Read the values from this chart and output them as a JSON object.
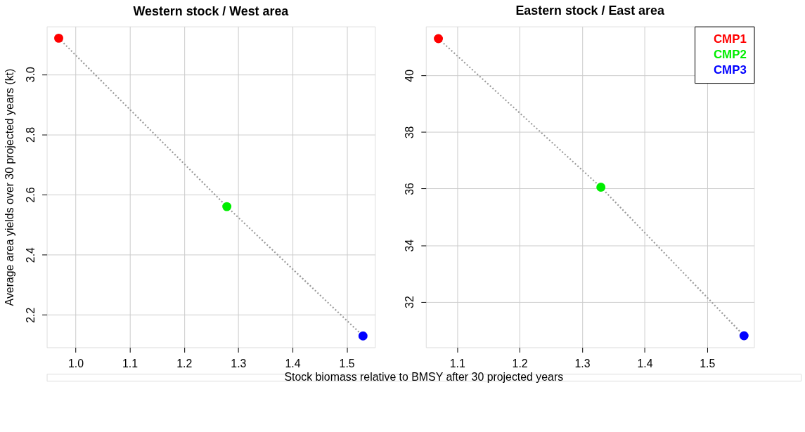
{
  "chart_data": [
    {
      "type": "scatter",
      "title": "Western stock / West area",
      "xlabel": "Stock biomass relative to BMSY after 30 projected years",
      "ylabel": "Average area yields over 30 projected years (kt)",
      "xlim": [
        0.947,
        1.552
      ],
      "ylim": [
        2.092,
        3.159
      ],
      "xticks": [
        {
          "value": 1,
          "label": "1.0"
        },
        1.1,
        1.2,
        1.3,
        1.4,
        1.5
      ],
      "yticks": [
        2.2,
        2.4,
        2.6,
        2.8,
        {
          "value": 3,
          "label": "3.0"
        }
      ],
      "grid": true,
      "series": [
        {
          "type": "line",
          "x": [
            0.969,
            1.279,
            1.53
          ],
          "values": [
            3.12,
            2.56,
            2.13
          ],
          "color": "#999999",
          "line_style": "dotted"
        },
        {
          "x": [
            0.969
          ],
          "values": [
            3.12
          ],
          "color": "#ff0000",
          "marker": "circle"
        },
        {
          "x": [
            1.279
          ],
          "values": [
            2.56
          ],
          "color": "#00ee00",
          "marker": "circle"
        },
        {
          "x": [
            1.53
          ],
          "values": [
            2.13
          ],
          "color": "#0000ff",
          "marker": "circle"
        }
      ]
    },
    {
      "type": "scatter",
      "title": "Eastern stock / East area",
      "xlim": [
        1.05,
        1.575
      ],
      "ylim": [
        30.39,
        41.73
      ],
      "xticks": [
        1.1,
        1.2,
        1.3,
        1.4,
        1.5
      ],
      "yticks": [
        32,
        34,
        36,
        38,
        40
      ],
      "grid": true,
      "legend": "top right",
      "series": [
        {
          "type": "line",
          "x": [
            1.07,
            1.33,
            1.559
          ],
          "values": [
            41.3,
            36.05,
            30.8
          ],
          "color": "#999999",
          "line_style": "dotted"
        },
        {
          "name": "CMP1",
          "x": [
            1.07
          ],
          "values": [
            41.3
          ],
          "color": "#ff0000",
          "marker": "circle"
        },
        {
          "name": "CMP2",
          "x": [
            1.33
          ],
          "values": [
            36.05
          ],
          "color": "#00ee00",
          "marker": "circle"
        },
        {
          "name": "CMP3",
          "x": [
            1.559
          ],
          "values": [
            30.8
          ],
          "color": "#0000ff",
          "marker": "circle"
        }
      ]
    }
  ]
}
